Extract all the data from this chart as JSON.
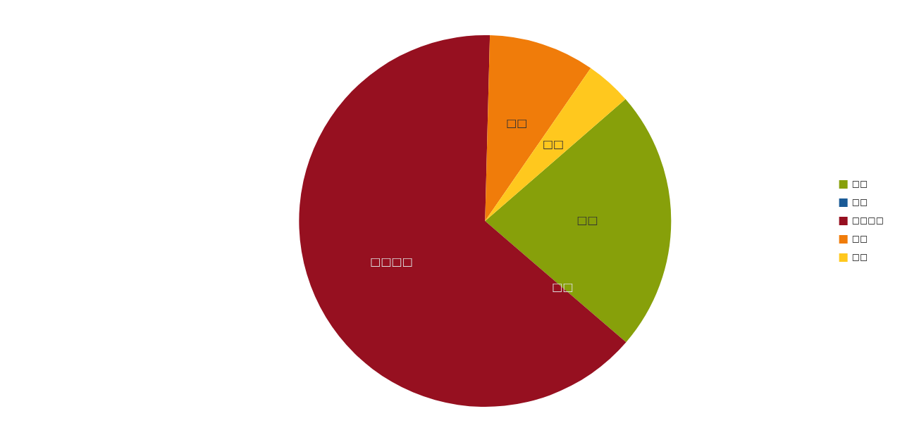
{
  "chart_data": {
    "type": "pie",
    "categories": [
      "□□",
      "□□",
      "□□□□",
      "□□",
      "□□"
    ],
    "values": [
      22.7,
      0,
      64.1,
      9.2,
      4.0
    ],
    "colors": [
      "#87a00a",
      "#1a5a96",
      "#961020",
      "#f07c0a",
      "#ffc81e"
    ],
    "legend": "right"
  }
}
